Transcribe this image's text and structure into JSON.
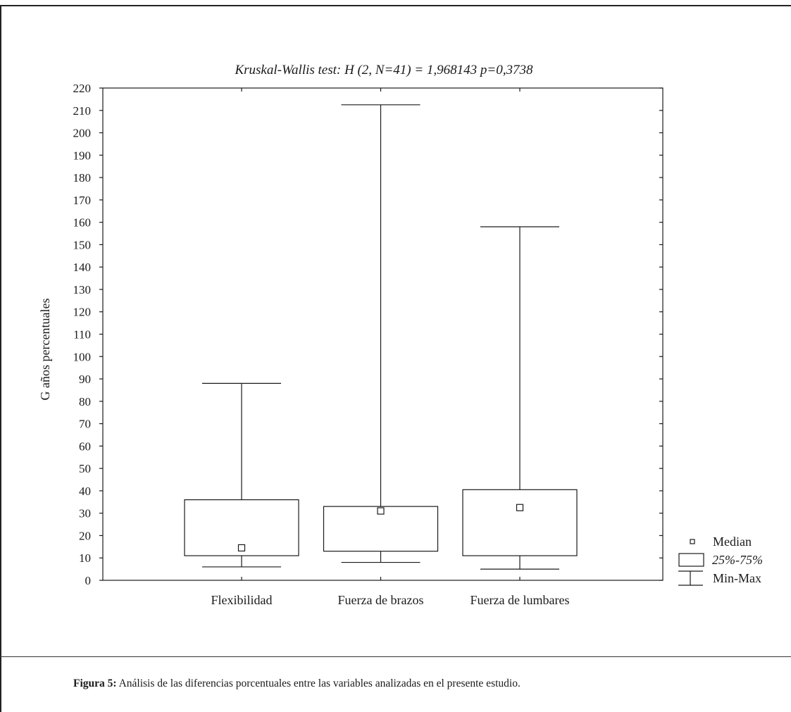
{
  "chart_data": {
    "type": "boxplot",
    "title": "Kruskal-Wallis test: H (2, N=41) = 1,968143 p=0,3738",
    "xlabel": "",
    "ylabel": "G años percentuales",
    "ylim": [
      0,
      220
    ],
    "yticks": [
      0,
      10,
      20,
      30,
      40,
      50,
      60,
      70,
      80,
      90,
      100,
      110,
      120,
      130,
      140,
      150,
      160,
      170,
      180,
      190,
      200,
      210,
      220
    ],
    "categories": [
      "Flexibilidad",
      "Fuerza de brazos",
      "Fuerza de lumbares"
    ],
    "boxes": [
      {
        "category": "Flexibilidad",
        "min": 6,
        "q1": 11,
        "median": 14.5,
        "q3": 36,
        "max": 88
      },
      {
        "category": "Fuerza de brazos",
        "min": 8,
        "q1": 13,
        "median": 31,
        "q3": 33,
        "max": 212.5
      },
      {
        "category": "Fuerza de lumbares",
        "min": 5,
        "q1": 11,
        "median": 32.5,
        "q3": 40.5,
        "max": 158
      }
    ],
    "grid": false,
    "legend_position": "right",
    "legend": [
      {
        "marker": "square",
        "label": "Median"
      },
      {
        "marker": "box",
        "label": "25%-75%"
      },
      {
        "marker": "whisker",
        "label": "Min-Max"
      }
    ]
  },
  "caption": {
    "label": "Figura 5:",
    "text": " Análisis de las diferencias porcentuales entre las variables analizadas en el presente estudio."
  }
}
